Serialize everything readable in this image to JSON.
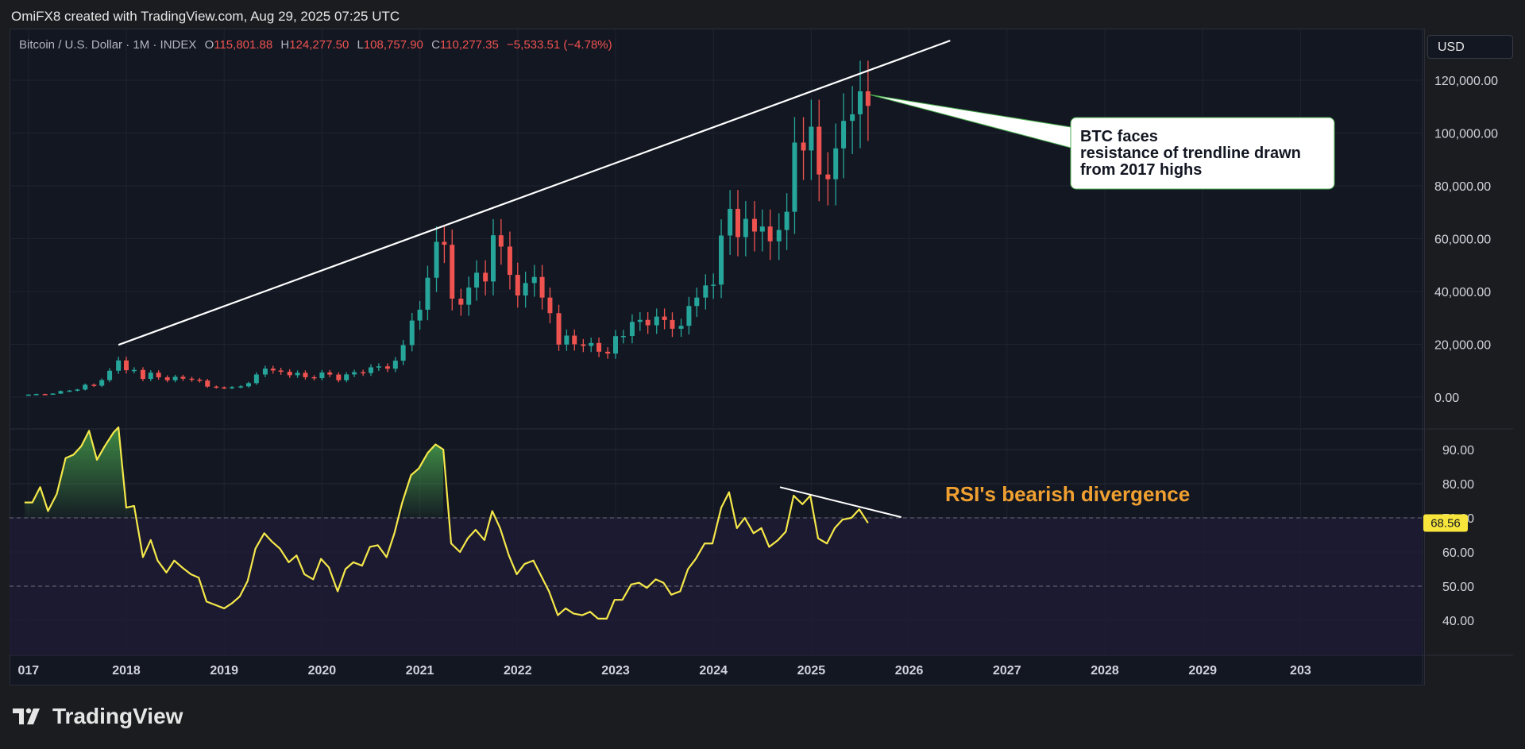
{
  "header": {
    "credit": "OmiFX8 created with TradingView.com, Aug 29, 2025 07:25 UTC"
  },
  "legend": {
    "symbol": "Bitcoin / U.S. Dollar · 1M · INDEX",
    "o_label": "O",
    "o_value": "115,801.88",
    "h_label": "H",
    "h_value": "124,277.50",
    "l_label": "L",
    "l_value": "108,757.90",
    "c_label": "C",
    "c_value": "110,277.35",
    "change": "−5,533.51 (−4.78%)"
  },
  "currency_button": "USD",
  "footer": {
    "logo_text": "TradingView",
    "logo_icon": "tradingview-logo-icon"
  },
  "colors": {
    "up": "#26a69a",
    "down": "#ef5350",
    "rsi": "#f5e84a",
    "annotation_orange": "#f0a030",
    "trendline": "#ffffff",
    "rsi_badge": "#f7e53b"
  },
  "chart_data": [
    {
      "type": "candlestick",
      "series_name": "Bitcoin / U.S. Dollar · 1M · INDEX",
      "y_ticks": [
        "0.00",
        "20,000.00",
        "40,000.00",
        "60,000.00",
        "80,000.00",
        "100,000.00",
        "120,000.00"
      ],
      "ylim": [
        -4000,
        128000
      ],
      "xlim": [
        2017.0,
        2030.0
      ],
      "points": [
        {
          "t": 2017.0,
          "c": 970
        },
        {
          "t": 2017.08,
          "c": 1190
        },
        {
          "t": 2017.17,
          "c": 1080
        },
        {
          "t": 2017.25,
          "c": 1350
        },
        {
          "t": 2017.33,
          "c": 2300
        },
        {
          "t": 2017.42,
          "c": 2480
        },
        {
          "t": 2017.5,
          "c": 2870
        },
        {
          "t": 2017.58,
          "c": 4700
        },
        {
          "t": 2017.67,
          "c": 4340
        },
        {
          "t": 2017.75,
          "c": 6450
        },
        {
          "t": 2017.83,
          "c": 10000
        },
        {
          "t": 2017.92,
          "c": 13900
        },
        {
          "t": 2018.0,
          "c": 10200
        },
        {
          "t": 2018.08,
          "c": 10300
        },
        {
          "t": 2018.17,
          "c": 6900
        },
        {
          "t": 2018.25,
          "c": 9250
        },
        {
          "t": 2018.33,
          "c": 7500
        },
        {
          "t": 2018.42,
          "c": 6400
        },
        {
          "t": 2018.5,
          "c": 7700
        },
        {
          "t": 2018.58,
          "c": 7000
        },
        {
          "t": 2018.67,
          "c": 6600
        },
        {
          "t": 2018.75,
          "c": 6300
        },
        {
          "t": 2018.83,
          "c": 4000
        },
        {
          "t": 2018.92,
          "c": 3700
        },
        {
          "t": 2019.0,
          "c": 3450
        },
        {
          "t": 2019.08,
          "c": 3800
        },
        {
          "t": 2019.17,
          "c": 4100
        },
        {
          "t": 2019.25,
          "c": 5300
        },
        {
          "t": 2019.33,
          "c": 8570
        },
        {
          "t": 2019.42,
          "c": 10800
        },
        {
          "t": 2019.5,
          "c": 10100
        },
        {
          "t": 2019.58,
          "c": 9600
        },
        {
          "t": 2019.67,
          "c": 8300
        },
        {
          "t": 2019.75,
          "c": 9200
        },
        {
          "t": 2019.83,
          "c": 7550
        },
        {
          "t": 2019.92,
          "c": 7200
        },
        {
          "t": 2020.0,
          "c": 9350
        },
        {
          "t": 2020.08,
          "c": 8550
        },
        {
          "t": 2020.17,
          "c": 6400
        },
        {
          "t": 2020.25,
          "c": 8600
        },
        {
          "t": 2020.33,
          "c": 9450
        },
        {
          "t": 2020.42,
          "c": 9140
        },
        {
          "t": 2020.5,
          "c": 11300
        },
        {
          "t": 2020.58,
          "c": 11650
        },
        {
          "t": 2020.67,
          "c": 10780
        },
        {
          "t": 2020.75,
          "c": 13800
        },
        {
          "t": 2020.83,
          "c": 19700
        },
        {
          "t": 2020.92,
          "c": 29000
        },
        {
          "t": 2021.0,
          "c": 33100
        },
        {
          "t": 2021.08,
          "c": 45200
        },
        {
          "t": 2021.17,
          "c": 58800
        },
        {
          "t": 2021.25,
          "c": 57700
        },
        {
          "t": 2021.33,
          "c": 37300
        },
        {
          "t": 2021.42,
          "c": 35000
        },
        {
          "t": 2021.5,
          "c": 41500
        },
        {
          "t": 2021.58,
          "c": 47100
        },
        {
          "t": 2021.67,
          "c": 43800
        },
        {
          "t": 2021.75,
          "c": 61300
        },
        {
          "t": 2021.83,
          "c": 57000
        },
        {
          "t": 2021.92,
          "c": 46300
        },
        {
          "t": 2022.0,
          "c": 38500
        },
        {
          "t": 2022.08,
          "c": 43200
        },
        {
          "t": 2022.17,
          "c": 45500
        },
        {
          "t": 2022.25,
          "c": 37700
        },
        {
          "t": 2022.33,
          "c": 31800
        },
        {
          "t": 2022.42,
          "c": 19900
        },
        {
          "t": 2022.5,
          "c": 23300
        },
        {
          "t": 2022.58,
          "c": 20000
        },
        {
          "t": 2022.67,
          "c": 19400
        },
        {
          "t": 2022.75,
          "c": 20500
        },
        {
          "t": 2022.83,
          "c": 17200
        },
        {
          "t": 2022.92,
          "c": 16500
        },
        {
          "t": 2023.0,
          "c": 23100
        },
        {
          "t": 2023.08,
          "c": 23150
        },
        {
          "t": 2023.17,
          "c": 28500
        },
        {
          "t": 2023.25,
          "c": 29250
        },
        {
          "t": 2023.33,
          "c": 27200
        },
        {
          "t": 2023.42,
          "c": 30500
        },
        {
          "t": 2023.5,
          "c": 29200
        },
        {
          "t": 2023.58,
          "c": 25900
        },
        {
          "t": 2023.67,
          "c": 27000
        },
        {
          "t": 2023.75,
          "c": 34500
        },
        {
          "t": 2023.83,
          "c": 37700
        },
        {
          "t": 2023.92,
          "c": 42300
        },
        {
          "t": 2024.0,
          "c": 42600
        },
        {
          "t": 2024.08,
          "c": 61200
        },
        {
          "t": 2024.17,
          "c": 71300
        },
        {
          "t": 2024.25,
          "c": 60600
        },
        {
          "t": 2024.33,
          "c": 67500
        },
        {
          "t": 2024.42,
          "c": 62700
        },
        {
          "t": 2024.5,
          "c": 64600
        },
        {
          "t": 2024.58,
          "c": 59000
        },
        {
          "t": 2024.67,
          "c": 63300
        },
        {
          "t": 2024.75,
          "c": 70200
        },
        {
          "t": 2024.83,
          "c": 96400
        },
        {
          "t": 2024.92,
          "c": 93400
        },
        {
          "t": 2025.0,
          "c": 102400
        },
        {
          "t": 2025.08,
          "c": 84300
        },
        {
          "t": 2025.17,
          "c": 82500
        },
        {
          "t": 2025.25,
          "c": 94200
        },
        {
          "t": 2025.33,
          "c": 104600
        },
        {
          "t": 2025.42,
          "c": 107100
        },
        {
          "t": 2025.5,
          "c": 115800
        },
        {
          "t": 2025.58,
          "c": 110277
        }
      ]
    },
    {
      "type": "line",
      "series_name": "RSI",
      "y_ticks": [
        "40.00",
        "50.00",
        "60.00",
        "70.00",
        "80.00",
        "90.00"
      ],
      "ylim": [
        30,
        95
      ],
      "xlim": [
        2017.0,
        2030.0
      ],
      "current_value": "68.56",
      "bands": [
        50,
        70
      ],
      "annotation": "RSI's bearish divergence",
      "points": [
        {
          "t": 2016.96,
          "v": 74.5
        },
        {
          "t": 2017.04,
          "v": 74.5
        },
        {
          "t": 2017.12,
          "v": 79
        },
        {
          "t": 2017.2,
          "v": 72
        },
        {
          "t": 2017.29,
          "v": 77
        },
        {
          "t": 2017.38,
          "v": 87.5
        },
        {
          "t": 2017.46,
          "v": 88.5
        },
        {
          "t": 2017.54,
          "v": 91
        },
        {
          "t": 2017.62,
          "v": 95.5
        },
        {
          "t": 2017.7,
          "v": 87
        },
        {
          "t": 2017.78,
          "v": 91
        },
        {
          "t": 2017.87,
          "v": 95
        },
        {
          "t": 2017.92,
          "v": 96.5
        },
        {
          "t": 2018.0,
          "v": 73
        },
        {
          "t": 2018.08,
          "v": 73.5
        },
        {
          "t": 2018.17,
          "v": 58.5
        },
        {
          "t": 2018.25,
          "v": 63.5
        },
        {
          "t": 2018.32,
          "v": 57.5
        },
        {
          "t": 2018.41,
          "v": 54
        },
        {
          "t": 2018.49,
          "v": 57.5
        },
        {
          "t": 2018.57,
          "v": 55.5
        },
        {
          "t": 2018.66,
          "v": 53.5
        },
        {
          "t": 2018.74,
          "v": 52.5
        },
        {
          "t": 2018.82,
          "v": 45.5
        },
        {
          "t": 2018.91,
          "v": 44.5
        },
        {
          "t": 2019.0,
          "v": 43.5
        },
        {
          "t": 2019.08,
          "v": 45
        },
        {
          "t": 2019.16,
          "v": 47
        },
        {
          "t": 2019.24,
          "v": 51.5
        },
        {
          "t": 2019.32,
          "v": 61
        },
        {
          "t": 2019.41,
          "v": 65.5
        },
        {
          "t": 2019.49,
          "v": 63
        },
        {
          "t": 2019.57,
          "v": 61
        },
        {
          "t": 2019.66,
          "v": 57
        },
        {
          "t": 2019.74,
          "v": 59
        },
        {
          "t": 2019.82,
          "v": 53.5
        },
        {
          "t": 2019.91,
          "v": 52
        },
        {
          "t": 2019.99,
          "v": 58
        },
        {
          "t": 2020.07,
          "v": 55.5
        },
        {
          "t": 2020.16,
          "v": 48.5
        },
        {
          "t": 2020.24,
          "v": 55
        },
        {
          "t": 2020.32,
          "v": 57
        },
        {
          "t": 2020.41,
          "v": 56
        },
        {
          "t": 2020.49,
          "v": 61.5
        },
        {
          "t": 2020.57,
          "v": 62
        },
        {
          "t": 2020.66,
          "v": 58.5
        },
        {
          "t": 2020.74,
          "v": 65.5
        },
        {
          "t": 2020.82,
          "v": 74.5
        },
        {
          "t": 2020.91,
          "v": 82.5
        },
        {
          "t": 2020.99,
          "v": 84.5
        },
        {
          "t": 2021.08,
          "v": 89
        },
        {
          "t": 2021.16,
          "v": 91.5
        },
        {
          "t": 2021.24,
          "v": 90
        },
        {
          "t": 2021.32,
          "v": 62.5
        },
        {
          "t": 2021.41,
          "v": 60
        },
        {
          "t": 2021.49,
          "v": 64
        },
        {
          "t": 2021.57,
          "v": 66.5
        },
        {
          "t": 2021.66,
          "v": 63.5
        },
        {
          "t": 2021.74,
          "v": 72
        },
        {
          "t": 2021.82,
          "v": 67
        },
        {
          "t": 2021.91,
          "v": 59
        },
        {
          "t": 2021.99,
          "v": 53.5
        },
        {
          "t": 2022.07,
          "v": 56.5
        },
        {
          "t": 2022.16,
          "v": 57.5
        },
        {
          "t": 2022.24,
          "v": 53
        },
        {
          "t": 2022.32,
          "v": 48.5
        },
        {
          "t": 2022.41,
          "v": 41.5
        },
        {
          "t": 2022.49,
          "v": 43.5
        },
        {
          "t": 2022.57,
          "v": 42
        },
        {
          "t": 2022.66,
          "v": 41.5
        },
        {
          "t": 2022.74,
          "v": 42.5
        },
        {
          "t": 2022.82,
          "v": 40.5
        },
        {
          "t": 2022.91,
          "v": 40.5
        },
        {
          "t": 2022.99,
          "v": 46
        },
        {
          "t": 2023.07,
          "v": 46
        },
        {
          "t": 2023.16,
          "v": 50.5
        },
        {
          "t": 2023.24,
          "v": 51
        },
        {
          "t": 2023.32,
          "v": 49.5
        },
        {
          "t": 2023.41,
          "v": 52
        },
        {
          "t": 2023.49,
          "v": 51
        },
        {
          "t": 2023.57,
          "v": 47.5
        },
        {
          "t": 2023.66,
          "v": 48.5
        },
        {
          "t": 2023.74,
          "v": 55
        },
        {
          "t": 2023.82,
          "v": 58
        },
        {
          "t": 2023.91,
          "v": 62.5
        },
        {
          "t": 2023.99,
          "v": 62.5
        },
        {
          "t": 2024.08,
          "v": 73
        },
        {
          "t": 2024.16,
          "v": 77.5
        },
        {
          "t": 2024.24,
          "v": 67
        },
        {
          "t": 2024.32,
          "v": 70
        },
        {
          "t": 2024.41,
          "v": 65.5
        },
        {
          "t": 2024.49,
          "v": 67
        },
        {
          "t": 2024.57,
          "v": 61.5
        },
        {
          "t": 2024.66,
          "v": 63.5
        },
        {
          "t": 2024.74,
          "v": 66
        },
        {
          "t": 2024.82,
          "v": 76.5
        },
        {
          "t": 2024.91,
          "v": 74
        },
        {
          "t": 2024.99,
          "v": 76.5
        },
        {
          "t": 2025.07,
          "v": 64
        },
        {
          "t": 2025.16,
          "v": 62.5
        },
        {
          "t": 2025.24,
          "v": 67
        },
        {
          "t": 2025.32,
          "v": 69.5
        },
        {
          "t": 2025.41,
          "v": 70
        },
        {
          "t": 2025.49,
          "v": 72.5
        },
        {
          "t": 2025.58,
          "v": 68.5
        }
      ]
    }
  ],
  "x_axis": {
    "ticks": [
      {
        "t": 2017,
        "label": "017"
      },
      {
        "t": 2018,
        "label": "2018"
      },
      {
        "t": 2019,
        "label": "2019"
      },
      {
        "t": 2020,
        "label": "2020"
      },
      {
        "t": 2021,
        "label": "2021"
      },
      {
        "t": 2022,
        "label": "2022"
      },
      {
        "t": 2023,
        "label": "2023"
      },
      {
        "t": 2024,
        "label": "2024"
      },
      {
        "t": 2025,
        "label": "2025"
      },
      {
        "t": 2026,
        "label": "2026"
      },
      {
        "t": 2027,
        "label": "2027"
      },
      {
        "t": 2028,
        "label": "2028"
      },
      {
        "t": 2029,
        "label": "2029"
      },
      {
        "t": 2030,
        "label": "203"
      }
    ]
  },
  "annotations": {
    "callout_lines": [
      "BTC faces",
      "resistance of trendline drawn",
      "from 2017 highs"
    ],
    "trendline": {
      "from": {
        "t": 2017.92,
        "price": 19800
      },
      "to": {
        "t": 2026.42,
        "price": 135000
      }
    },
    "rsi_divergence_line": {
      "from": {
        "t": 2024.68,
        "v": 79
      },
      "to": {
        "t": 2025.92,
        "v": 70.2
      }
    }
  }
}
